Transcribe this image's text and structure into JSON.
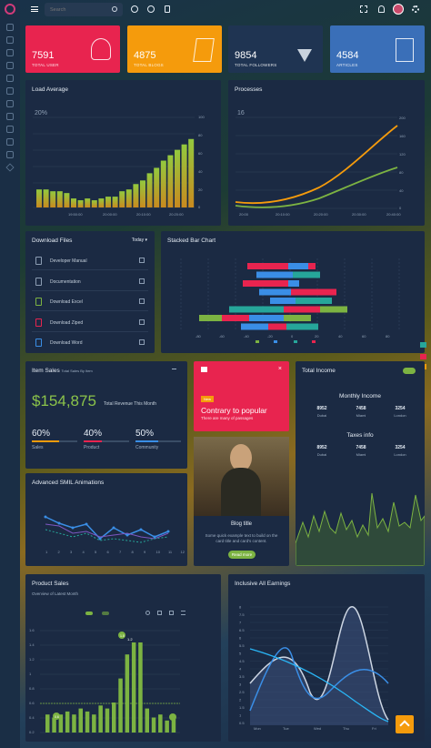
{
  "search": {
    "placeholder": "Search"
  },
  "stats": [
    {
      "value": "7591",
      "label": "TOTAL USER",
      "color": "#e8244f"
    },
    {
      "value": "4875",
      "label": "TOTAL BLOGS",
      "color": "#f59b0c"
    },
    {
      "value": "9854",
      "label": "TOTAL FOLLOWERS",
      "color": "#1f3452"
    },
    {
      "value": "4584",
      "label": "ARTICLES",
      "color": "#3a6fb8"
    }
  ],
  "load_average": {
    "title": "Load Average",
    "ylabels": [
      "100",
      "80",
      "60",
      "40",
      "20",
      "0"
    ],
    "xlabels": [
      "19:50:00",
      "20:00:00",
      "20:10:00",
      "20:20:00"
    ],
    "bar_label": "20%"
  },
  "processes": {
    "title": "Processes",
    "ylabels": [
      "200",
      "160",
      "120",
      "80",
      "40",
      "0"
    ],
    "xlabels": [
      "20:00",
      "20:10:00",
      "20:20:00",
      "20:30:00",
      "20:40:00"
    ],
    "label": "16"
  },
  "download": {
    "title": "Download Files",
    "filter": "Today ▾",
    "files": [
      "Developer Manual",
      "Documentation",
      "Download Excel",
      "Download Ziped",
      "Download Word"
    ]
  },
  "stacked": {
    "title": "Stacked Bar Chart",
    "xlabels": [
      "-80",
      "-60",
      "-40",
      "-20",
      "0",
      "20",
      "40",
      "60",
      "80"
    ]
  },
  "item_sales": {
    "title": "Item Sales",
    "subtitle": "Total Sales By Item",
    "amount": "$154,875",
    "amount_label": "Total Revenue This Month",
    "metrics": [
      {
        "pct": "60%",
        "label": "Sales",
        "color": "#f59b0c",
        "fill": 0.6
      },
      {
        "pct": "40%",
        "label": "Product",
        "color": "#e8244f",
        "fill": 0.4
      },
      {
        "pct": "50%",
        "label": "Community",
        "color": "#3a8ee6",
        "fill": 0.5
      }
    ]
  },
  "promo": {
    "badge": "New",
    "title": "Contrary to popular",
    "text": "There are many of passages"
  },
  "blog": {
    "title": "Blog title",
    "text": "Some quick example text to build on the card title and card's content.",
    "button": "Read more"
  },
  "income": {
    "title": "Total Income",
    "toggle": "",
    "monthly": {
      "title": "Monthly Income",
      "values": [
        "8952",
        "7458",
        "3254"
      ],
      "cities": [
        "Dubai",
        "Miami",
        "London"
      ]
    },
    "taxes": {
      "title": "Taxes info",
      "values": [
        "8952",
        "7458",
        "3254"
      ],
      "cities": [
        "Dubai",
        "Miami",
        "London"
      ]
    }
  },
  "smil": {
    "title": "Advanced SMIL Animations",
    "xlabels": [
      "1",
      "2",
      "3",
      "4",
      "5",
      "6",
      "7",
      "8",
      "9",
      "10",
      "11",
      "12"
    ]
  },
  "product_sales": {
    "title": "Product Sales",
    "subtitle": "Overview of Latest Month",
    "ylabels": [
      "1.6",
      "1.4",
      "1.2",
      "1",
      "0.8",
      "0.6",
      "0.4",
      "0.2"
    ],
    "peak": "1.5",
    "peak2": "1.2",
    "low": "0.6"
  },
  "earnings": {
    "title": "Inclusive All Earnings",
    "ylabels": [
      "8",
      "7.5",
      "7",
      "6.5",
      "6",
      "5.5",
      "5",
      "4.5",
      "4",
      "3.5",
      "3",
      "2.5",
      "2",
      "1.5",
      "1",
      "0.5"
    ],
    "xlabels": [
      "Mon",
      "Tue",
      "Wed",
      "Thu",
      "Fri",
      "Sat"
    ]
  }
}
